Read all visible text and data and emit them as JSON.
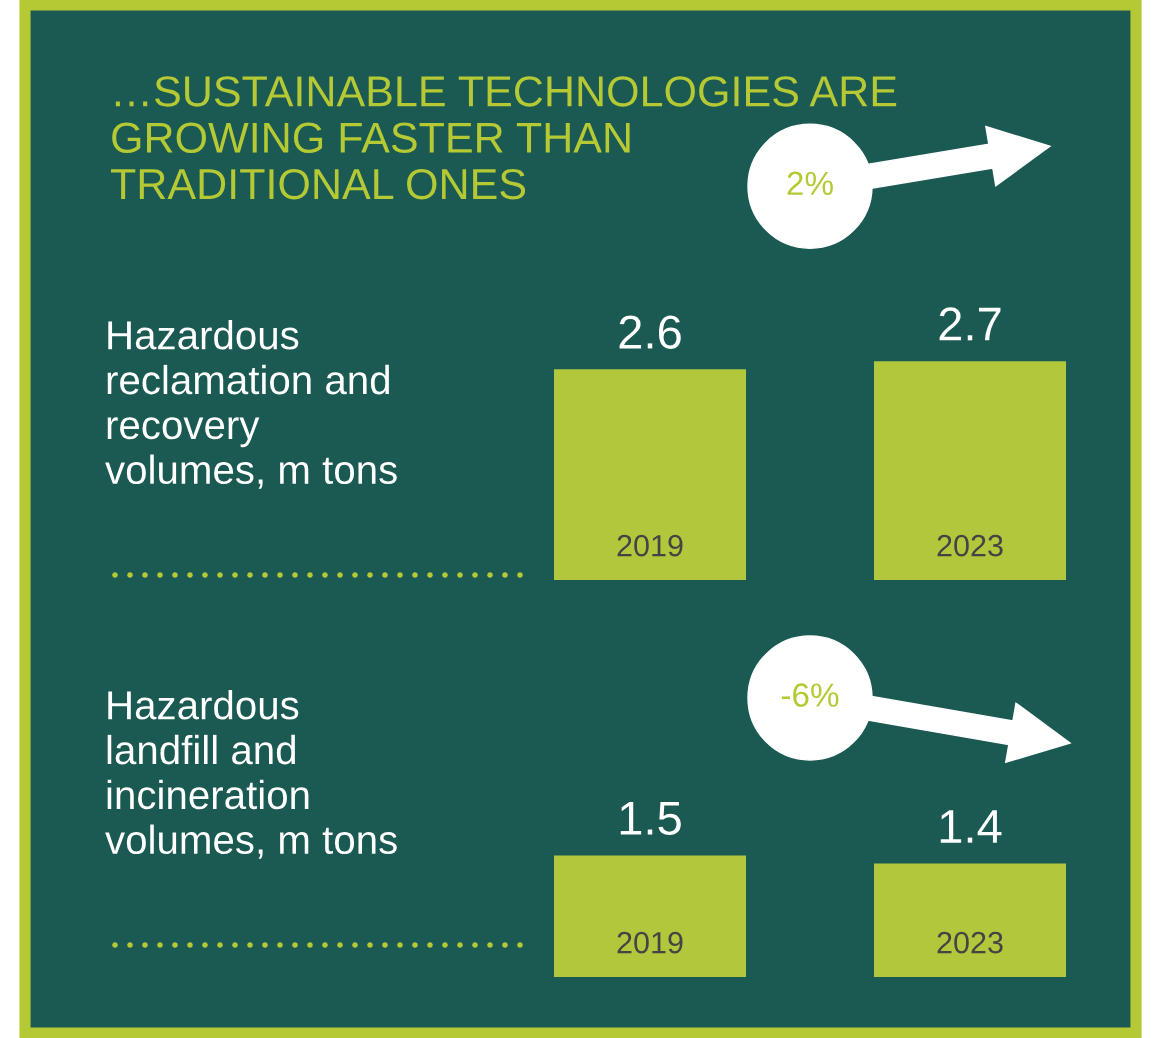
{
  "chart_data": [
    {
      "type": "bar",
      "title": "…SUSTAINABLE TECHNOLOGIES ARE\nGROWING FASTER THAN\nTRADITIONAL ONES",
      "ylabel": "Hazardous\nreclamation and\nrecovery\nvolumes, m tons",
      "categories": [
        "2019",
        "2023"
      ],
      "values": [
        2.6,
        2.7
      ],
      "color": "#b2c73c",
      "data_labels": true,
      "annotations": [
        "2%"
      ]
    },
    {
      "type": "bar",
      "ylabel": "Hazardous\nlandfill and\nincineration\nvolumes, m tons",
      "categories": [
        "2019",
        "2023"
      ],
      "values": [
        1.5,
        1.4
      ],
      "color": "#b2c73c",
      "data_labels": true,
      "annotations": [
        "-6%"
      ]
    }
  ]
}
